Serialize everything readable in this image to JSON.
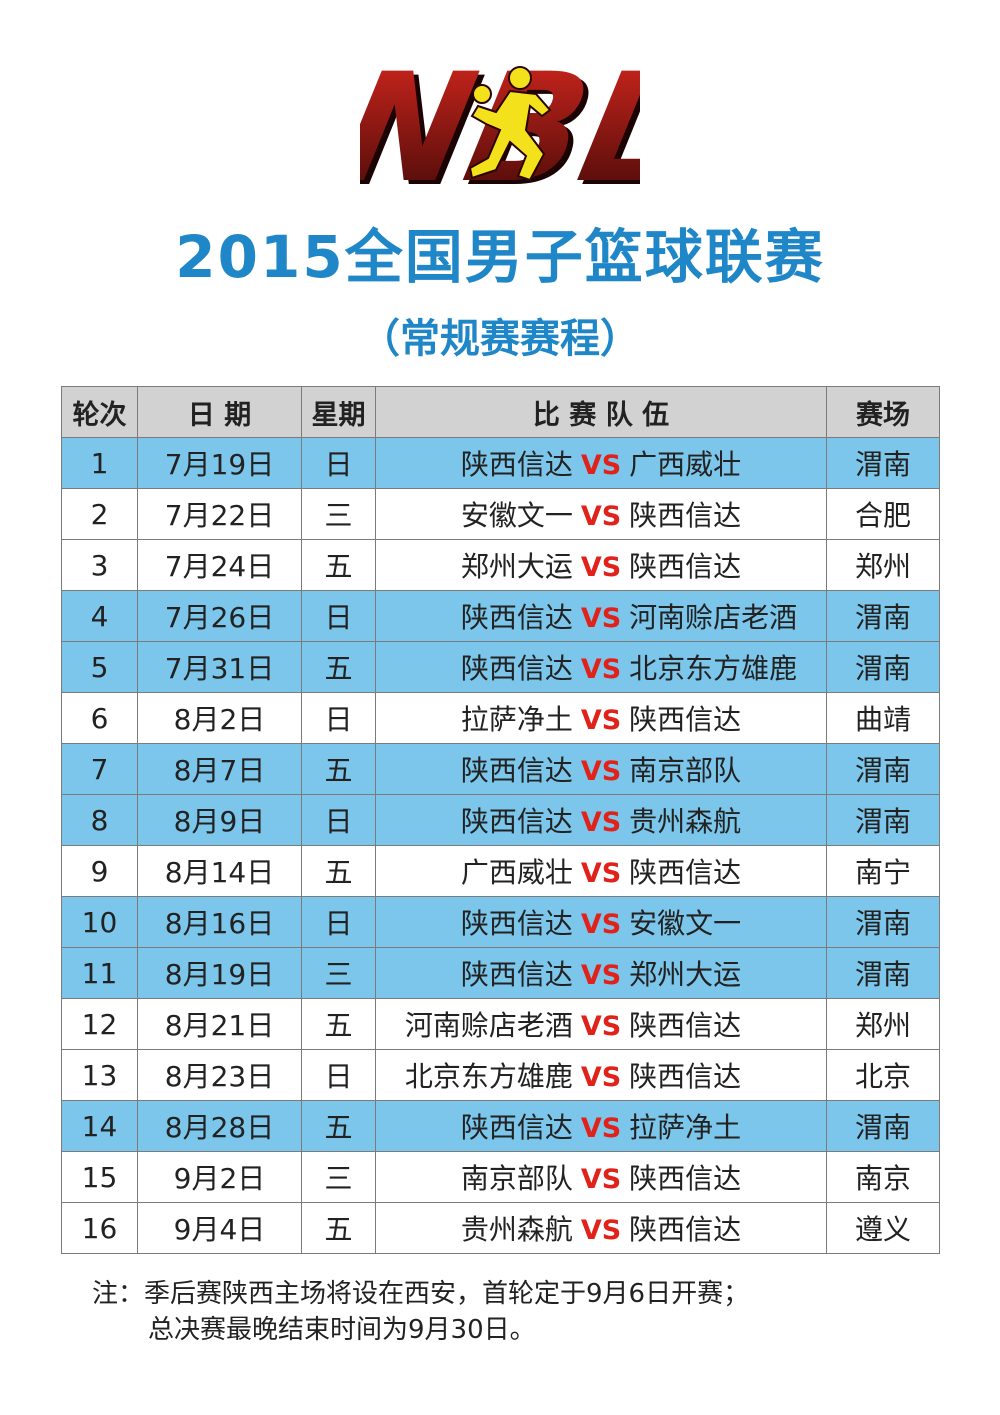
{
  "logo": {
    "text": "NBL",
    "colors": {
      "red": "#c8231e",
      "dark": "#5a0c0a",
      "figure": "#f3e21b"
    }
  },
  "title": "2015全国男子篮球联赛",
  "subtitle": "（常规赛赛程）",
  "table": {
    "headers": [
      "轮次",
      "日 期",
      "星期",
      "比 赛 队 伍",
      "赛场"
    ],
    "vs_label": "VS",
    "rows": [
      {
        "round": "1",
        "date": "7月19日",
        "weekday": "日",
        "team_a": "陕西信达",
        "team_b": "广西威壮",
        "venue": "渭南",
        "home": true
      },
      {
        "round": "2",
        "date": "7月22日",
        "weekday": "三",
        "team_a": "安徽文一",
        "team_b": "陕西信达",
        "venue": "合肥",
        "home": false
      },
      {
        "round": "3",
        "date": "7月24日",
        "weekday": "五",
        "team_a": "郑州大运",
        "team_b": "陕西信达",
        "venue": "郑州",
        "home": false
      },
      {
        "round": "4",
        "date": "7月26日",
        "weekday": "日",
        "team_a": "陕西信达",
        "team_b": "河南赊店老酒",
        "venue": "渭南",
        "home": true
      },
      {
        "round": "5",
        "date": "7月31日",
        "weekday": "五",
        "team_a": "陕西信达",
        "team_b": "北京东方雄鹿",
        "venue": "渭南",
        "home": true
      },
      {
        "round": "6",
        "date": "8月2日",
        "weekday": "日",
        "team_a": "拉萨净土",
        "team_b": "陕西信达",
        "venue": "曲靖",
        "home": false
      },
      {
        "round": "7",
        "date": "8月7日",
        "weekday": "五",
        "team_a": "陕西信达",
        "team_b": "南京部队",
        "venue": "渭南",
        "home": true
      },
      {
        "round": "8",
        "date": "8月9日",
        "weekday": "日",
        "team_a": "陕西信达",
        "team_b": "贵州森航",
        "venue": "渭南",
        "home": true
      },
      {
        "round": "9",
        "date": "8月14日",
        "weekday": "五",
        "team_a": "广西威壮",
        "team_b": "陕西信达",
        "venue": "南宁",
        "home": false
      },
      {
        "round": "10",
        "date": "8月16日",
        "weekday": "日",
        "team_a": "陕西信达",
        "team_b": "安徽文一",
        "venue": "渭南",
        "home": true
      },
      {
        "round": "11",
        "date": "8月19日",
        "weekday": "三",
        "team_a": "陕西信达",
        "team_b": "郑州大运",
        "venue": "渭南",
        "home": true
      },
      {
        "round": "12",
        "date": "8月21日",
        "weekday": "五",
        "team_a": "河南赊店老酒",
        "team_b": "陕西信达",
        "venue": "郑州",
        "home": false
      },
      {
        "round": "13",
        "date": "8月23日",
        "weekday": "日",
        "team_a": "北京东方雄鹿",
        "team_b": "陕西信达",
        "venue": "北京",
        "home": false
      },
      {
        "round": "14",
        "date": "8月28日",
        "weekday": "五",
        "team_a": "陕西信达",
        "team_b": "拉萨净土",
        "venue": "渭南",
        "home": true
      },
      {
        "round": "15",
        "date": "9月2日",
        "weekday": "三",
        "team_a": "南京部队",
        "team_b": "陕西信达",
        "venue": "南京",
        "home": false
      },
      {
        "round": "16",
        "date": "9月4日",
        "weekday": "五",
        "team_a": "贵州森航",
        "team_b": "陕西信达",
        "venue": "遵义",
        "home": false
      }
    ]
  },
  "note": {
    "line1": "注：季后赛陕西主场将设在西安，首轮定于9月6日开赛；",
    "line2": "总决赛最晚结束时间为9月30日。"
  },
  "colors": {
    "title": "#1f86c8",
    "home_row": "#7bc6ea",
    "header_row": "#d2d2d2",
    "vs": "#e0221a"
  }
}
